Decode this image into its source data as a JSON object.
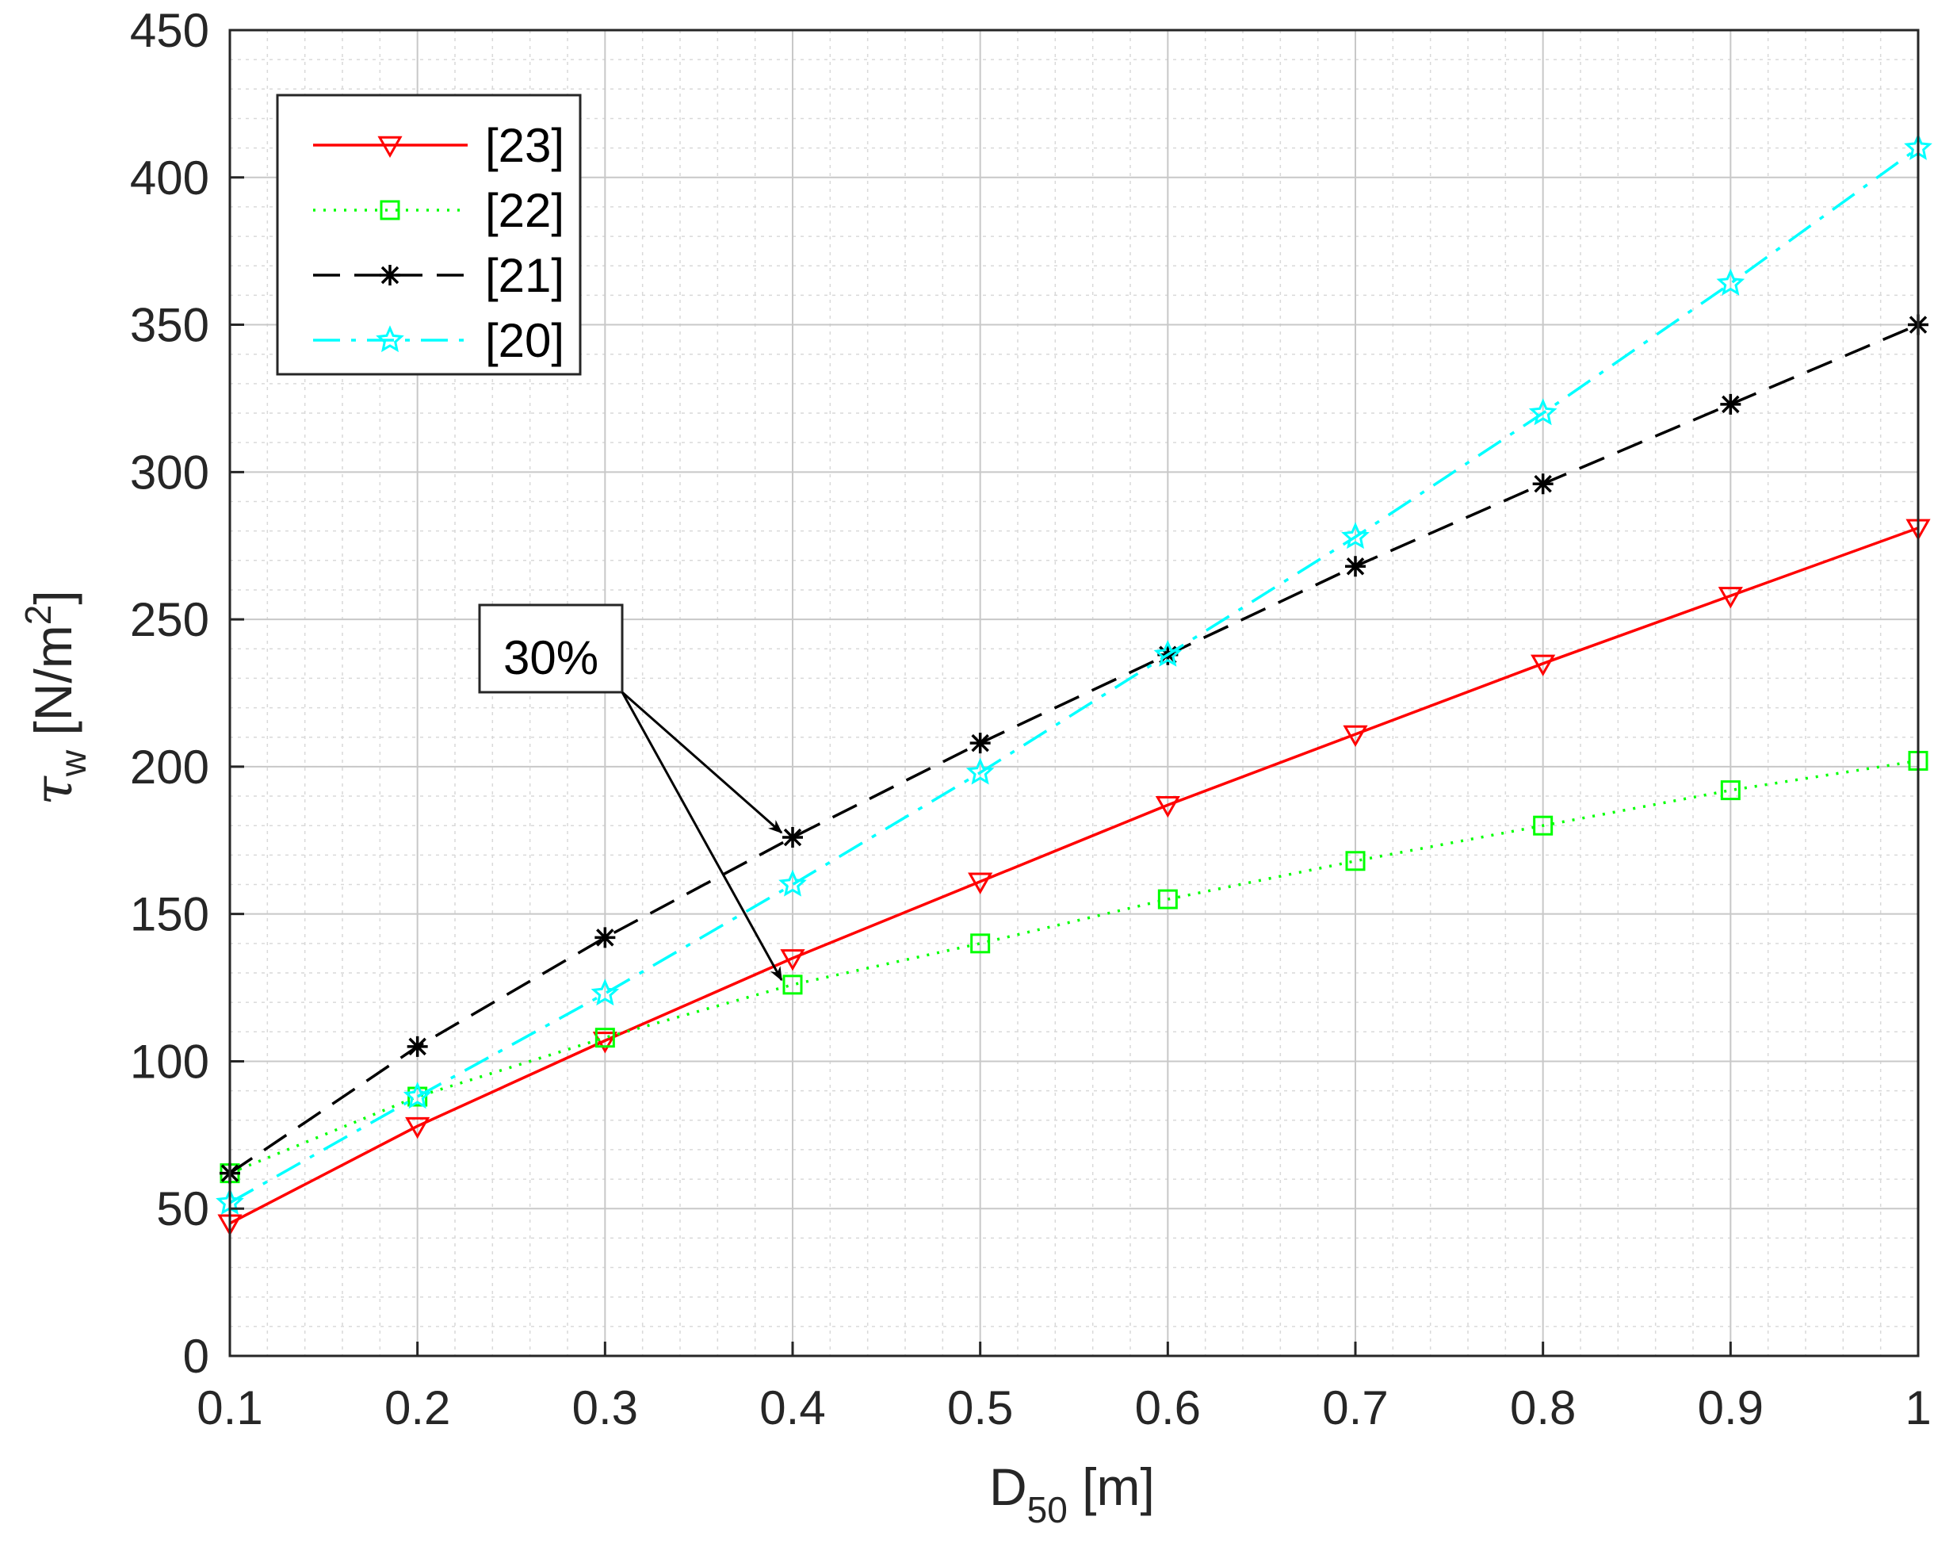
{
  "chart_data": {
    "type": "line",
    "title": "",
    "xlabel": {
      "base": "D",
      "sub": "50",
      "unit": " [m]"
    },
    "ylabel": {
      "tau": "τ",
      "sub": "w",
      "unit": " [N/m",
      "sup": "2",
      "close": "]"
    },
    "x": [
      0.1,
      0.2,
      0.3,
      0.4,
      0.5,
      0.6,
      0.7,
      0.8,
      0.9,
      1.0
    ],
    "xlim": [
      0.1,
      1.0
    ],
    "ylim": [
      0,
      450
    ],
    "xticks": [
      "0.1",
      "0.2",
      "0.3",
      "0.4",
      "0.5",
      "0.6",
      "0.7",
      "0.8",
      "0.9",
      "1"
    ],
    "yticks": [
      "0",
      "50",
      "100",
      "150",
      "200",
      "250",
      "300",
      "350",
      "400",
      "450"
    ],
    "grid": true,
    "minor_grid": true,
    "legend_position": "top-left",
    "series": [
      {
        "name": "[23]",
        "color": "#ff0000",
        "line_style": "solid",
        "marker": "triangle-down",
        "values": [
          45,
          78,
          107,
          135,
          161,
          187,
          211,
          235,
          258,
          281
        ]
      },
      {
        "name": "[22]",
        "color": "#00ff00",
        "line_style": "dotted",
        "marker": "square",
        "values": [
          62,
          88,
          108,
          126,
          140,
          155,
          168,
          180,
          192,
          202
        ]
      },
      {
        "name": "[21]",
        "color": "#000000",
        "line_style": "dashed",
        "marker": "asterisk",
        "values": [
          62,
          105,
          142,
          176,
          208,
          238,
          268,
          296,
          323,
          350
        ]
      },
      {
        "name": "[20]",
        "color": "#00ffff",
        "line_style": "dashdot",
        "marker": "star",
        "values": [
          52,
          88,
          123,
          160,
          198,
          238,
          278,
          320,
          364,
          410
        ]
      }
    ],
    "annotations": [
      {
        "text": "30%",
        "arrow_targets": [
          {
            "x": 0.4,
            "y": 176
          },
          {
            "x": 0.4,
            "y": 126
          }
        ]
      }
    ]
  }
}
